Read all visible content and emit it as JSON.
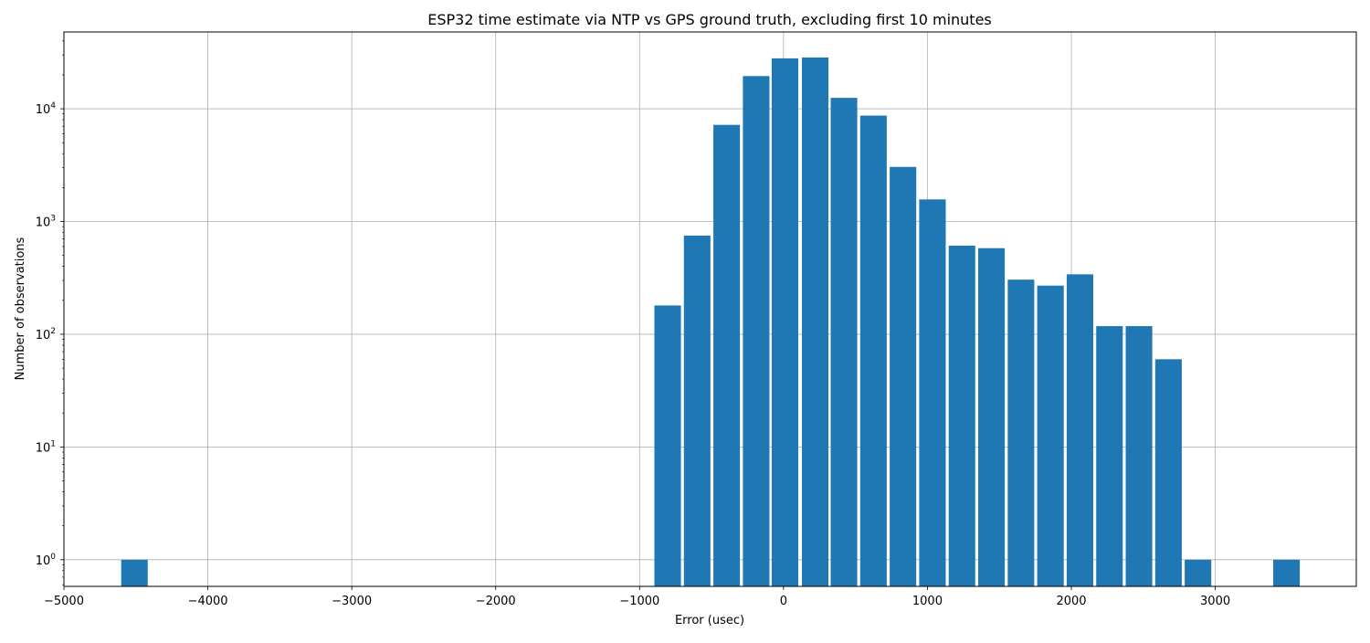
{
  "chart_data": {
    "type": "bar",
    "title": "ESP32 time estimate via NTP vs GPS ground truth, excluding first 10 minutes",
    "xlabel": "Error (usec)",
    "ylabel": "Number of observations",
    "xlim": [
      -5000,
      3980
    ],
    "ylim": [
      0.58,
      48000
    ],
    "yscale": "log",
    "grid": true,
    "bar_color": "#1f77b4",
    "bin_width": 205,
    "x_ticks": [
      {
        "value": -5000,
        "label": "−5000"
      },
      {
        "value": -4000,
        "label": "−4000"
      },
      {
        "value": -3000,
        "label": "−3000"
      },
      {
        "value": -2000,
        "label": "−2000"
      },
      {
        "value": -1000,
        "label": "−1000"
      },
      {
        "value": 0,
        "label": "0"
      },
      {
        "value": 1000,
        "label": "1000"
      },
      {
        "value": 2000,
        "label": "2000"
      },
      {
        "value": 3000,
        "label": "3000"
      }
    ],
    "y_ticks": [
      {
        "value": 1,
        "base": "10",
        "exp": "0"
      },
      {
        "value": 10,
        "base": "10",
        "exp": "1"
      },
      {
        "value": 100,
        "base": "10",
        "exp": "2"
      },
      {
        "value": 1000,
        "base": "10",
        "exp": "3"
      },
      {
        "value": 10000,
        "base": "10",
        "exp": "4"
      }
    ],
    "bins": [
      {
        "x": -4510,
        "value": 1
      },
      {
        "x": -805,
        "value": 180
      },
      {
        "x": -600,
        "value": 750
      },
      {
        "x": -395,
        "value": 7200
      },
      {
        "x": -190,
        "value": 19500
      },
      {
        "x": 10,
        "value": 28000
      },
      {
        "x": 220,
        "value": 28500
      },
      {
        "x": 420,
        "value": 12500
      },
      {
        "x": 625,
        "value": 8700
      },
      {
        "x": 830,
        "value": 3050
      },
      {
        "x": 1035,
        "value": 1570
      },
      {
        "x": 1240,
        "value": 610
      },
      {
        "x": 1445,
        "value": 580
      },
      {
        "x": 1650,
        "value": 305
      },
      {
        "x": 1855,
        "value": 270
      },
      {
        "x": 2060,
        "value": 340
      },
      {
        "x": 2265,
        "value": 118
      },
      {
        "x": 2470,
        "value": 118
      },
      {
        "x": 2675,
        "value": 60
      },
      {
        "x": 2880,
        "value": 1
      },
      {
        "x": 3495,
        "value": 1
      }
    ]
  }
}
